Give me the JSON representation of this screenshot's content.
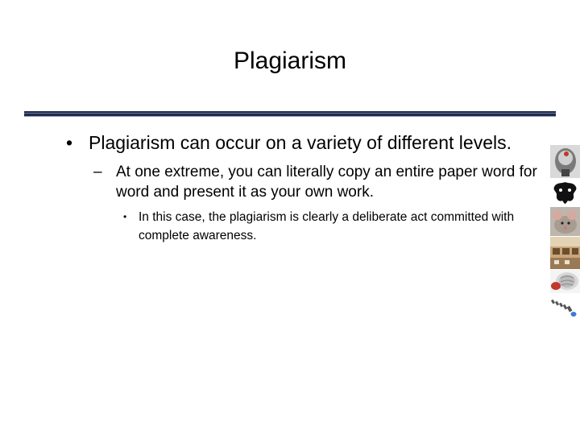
{
  "slide": {
    "title": "Plagiarism",
    "bullets": {
      "level1": "Plagiarism can occur on a variety of different levels.",
      "level2": "At one extreme, you can literally copy an entire paper word for word and present it as your own work.",
      "level3": "In this case, the plagiarism is clearly a deliberate act committed with complete awareness."
    },
    "bullet_symbols": {
      "level1": "•",
      "level2": "–",
      "level3": "•"
    }
  },
  "sidebar_images": [
    {
      "name": "head-sculpture-image"
    },
    {
      "name": "inkblot-image"
    },
    {
      "name": "mouse-image"
    },
    {
      "name": "lab-room-image"
    },
    {
      "name": "brain-model-image"
    },
    {
      "name": "dominoes-image"
    }
  ],
  "colors": {
    "rule": "#1f2a4a",
    "text": "#000000",
    "background": "#ffffff"
  }
}
